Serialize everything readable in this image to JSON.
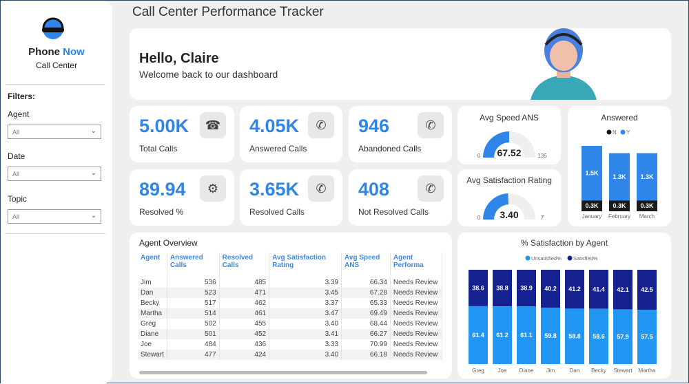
{
  "brand": {
    "name1": "Phone",
    "name2": "Now",
    "sub": "Call Center"
  },
  "filters": {
    "heading": "Filters:",
    "items": [
      {
        "label": "Agent",
        "value": "All"
      },
      {
        "label": "Date",
        "value": "All"
      },
      {
        "label": "Topic",
        "value": "All"
      }
    ]
  },
  "title": "Call Center Performance Tracker",
  "hello": {
    "greeting": "Hello, Claire",
    "sub": "Welcome back to our dashboard"
  },
  "kpis": [
    {
      "value": "5.00K",
      "label": "Total Calls",
      "icon": "phone-ringing-icon"
    },
    {
      "value": "4.05K",
      "label": "Answered Calls",
      "icon": "phone-answered-icon"
    },
    {
      "value": "946",
      "label": "Abandoned Calls",
      "icon": "phone-abandoned-icon"
    },
    {
      "value": "89.94",
      "label": "Resolved %",
      "icon": "gear-badge-icon"
    },
    {
      "value": "3.65K",
      "label": "Resolved Calls",
      "icon": "phone-check-icon"
    },
    {
      "value": "408",
      "label": "Not Resolved Calls",
      "icon": "phone-x-icon"
    }
  ],
  "colors": {
    "accent": "#2f86e8",
    "dark": "#1a1a1a",
    "satisfied": "#14218f",
    "unsatisfied": "#2196f3"
  },
  "gauges": [
    {
      "title": "Avg Speed ANS",
      "value": 67.52,
      "label": "67.52",
      "min": "0",
      "max": "135"
    },
    {
      "title": "Avg Satisfaction Rating",
      "value": 3.4,
      "label": "3.40",
      "min": "0",
      "max": "7"
    }
  ],
  "chart_data": [
    {
      "type": "bar",
      "stacked": true,
      "title": "Answered",
      "categories": [
        "January",
        "February",
        "March"
      ],
      "legend": [
        "N",
        "Y"
      ],
      "legend_placement": "top",
      "series": [
        {
          "name": "N",
          "values": [
            0.3,
            0.3,
            0.3
          ],
          "labels": [
            "0.3K",
            "0.3K",
            "0.3K"
          ]
        },
        {
          "name": "Y",
          "values": [
            1.5,
            1.3,
            1.3
          ],
          "labels": [
            "1.5K",
            "1.3K",
            "1.3K"
          ]
        }
      ]
    },
    {
      "type": "bar",
      "stacked": true,
      "title": "% Satisfaction by Agent",
      "categories": [
        "Greg",
        "Joe",
        "Diane",
        "Jim",
        "Dan",
        "Becky",
        "Stewart",
        "Martha"
      ],
      "legend": [
        "Unsatisfied%",
        "Satisfied%"
      ],
      "legend_placement": "top",
      "series": [
        {
          "name": "Unsatisfied%",
          "values": [
            61.4,
            61.2,
            61.1,
            59.8,
            58.8,
            58.6,
            57.9,
            57.5
          ]
        },
        {
          "name": "Satisfied%",
          "values": [
            38.6,
            38.8,
            38.9,
            40.2,
            41.2,
            41.4,
            42.1,
            42.5
          ]
        }
      ]
    }
  ],
  "table": {
    "title": "Agent Overview",
    "columns": [
      "Agent",
      "Answered Calls",
      "Resolved Calls",
      "Avg Satisfaction Rating",
      "Avg Speed ANS",
      "Agent Performa"
    ],
    "rows": [
      [
        "Jim",
        "536",
        "485",
        "3.39",
        "66.34",
        "Needs Review"
      ],
      [
        "Dan",
        "523",
        "471",
        "3.45",
        "67.28",
        "Needs Review"
      ],
      [
        "Becky",
        "517",
        "462",
        "3.37",
        "65.33",
        "Needs Review"
      ],
      [
        "Martha",
        "514",
        "461",
        "3.47",
        "69.49",
        "Needs Review"
      ],
      [
        "Greg",
        "502",
        "455",
        "3.40",
        "68.44",
        "Needs Review"
      ],
      [
        "Diane",
        "501",
        "452",
        "3.41",
        "66.27",
        "Needs Review"
      ],
      [
        "Joe",
        "484",
        "436",
        "3.33",
        "70.99",
        "Needs Review"
      ],
      [
        "Stewart",
        "477",
        "424",
        "3.40",
        "66.18",
        "Needs Review"
      ]
    ]
  }
}
